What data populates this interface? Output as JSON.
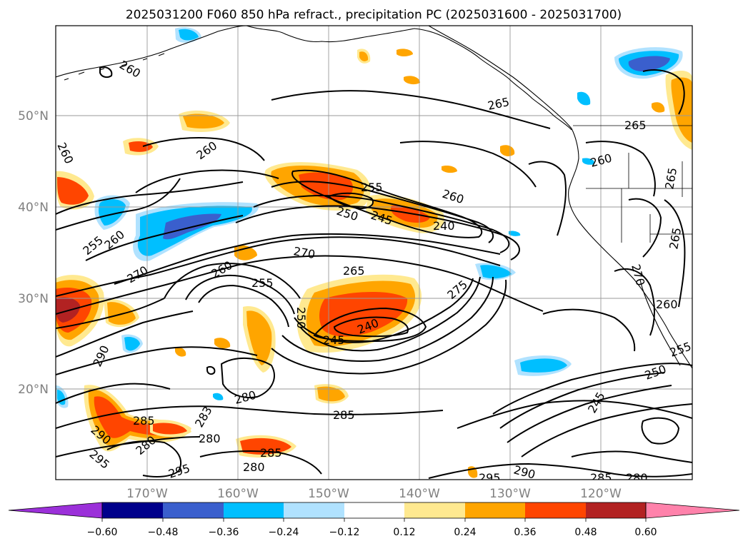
{
  "title": "2025031200 F060 850 hPa refract., precipitation PC (2025031600 - 2025031700)",
  "map": {
    "lon_ticks": [
      "170°W",
      "160°W",
      "150°W",
      "140°W",
      "130°W",
      "120°W"
    ],
    "lat_ticks": [
      "50°N",
      "40°N",
      "30°N",
      "20°N"
    ],
    "grid": true
  },
  "colorbar": {
    "ticks": [
      "−0.60",
      "−0.48",
      "−0.36",
      "−0.24",
      "−0.12",
      "0.12",
      "0.24",
      "0.36",
      "0.48",
      "0.60"
    ],
    "colors": [
      "#9b30d9",
      "#00008b",
      "#3a5fcd",
      "#00bfff",
      "#b0e2ff",
      "#ffffff",
      "#ffe990",
      "#ffa500",
      "#ff4500",
      "#b22222",
      "#ff82ab"
    ],
    "extend": "both"
  },
  "contour_labels": [
    "260",
    "260",
    "260",
    "255",
    "260",
    "270",
    "255",
    "250",
    "245",
    "240",
    "260",
    "270",
    "265",
    "260",
    "255",
    "250",
    "245",
    "240",
    "275",
    "265",
    "265",
    "260",
    "265",
    "265",
    "290",
    "280",
    "285",
    "285",
    "290",
    "295",
    "280",
    "283",
    "280",
    "295",
    "280",
    "285",
    "295",
    "290",
    "285",
    "280",
    "245",
    "250",
    "255",
    "260",
    "270"
  ]
}
